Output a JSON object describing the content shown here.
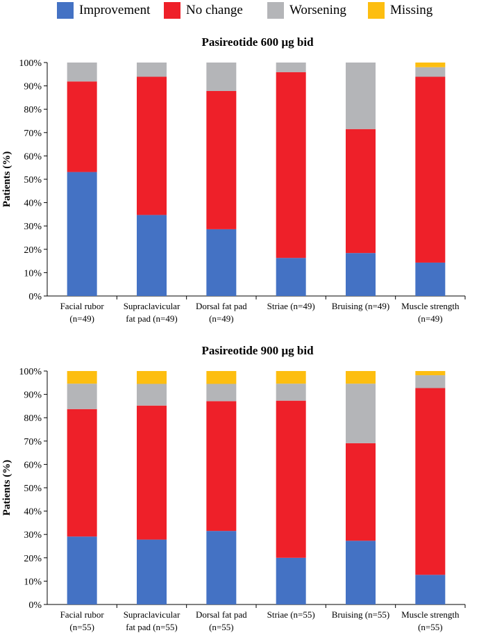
{
  "legend": [
    {
      "label": "Improvement",
      "color": "#4472c4"
    },
    {
      "label": "No change",
      "color": "#ee2029"
    },
    {
      "label": "Worsening",
      "color": "#b4b5b8"
    },
    {
      "label": "Missing",
      "color": "#fdbe10"
    }
  ],
  "ylabel": "Patients (%)",
  "chart_data": [
    {
      "type": "bar",
      "stacked": true,
      "title": "Pasireotide 600 µg bid",
      "ylabel": "Patients (%)",
      "ylim": [
        0,
        100
      ],
      "yticks": [
        "0%",
        "10%",
        "20%",
        "30%",
        "40%",
        "50%",
        "60%",
        "70%",
        "80%",
        "90%",
        "100%"
      ],
      "categories": [
        [
          "Facial rubor",
          "(n=49)"
        ],
        [
          "Supraclavicular",
          "fat pad (n=49)"
        ],
        [
          "Dorsal fat pad",
          "(n=49)"
        ],
        [
          "Striae (n=49)"
        ],
        [
          "Bruising (n=49)"
        ],
        [
          "Muscle strength",
          "(n=49)"
        ]
      ],
      "series": [
        {
          "name": "Improvement",
          "values": [
            53.1,
            34.7,
            28.6,
            16.3,
            18.4,
            14.3
          ]
        },
        {
          "name": "No change",
          "values": [
            38.8,
            59.2,
            59.2,
            79.6,
            53.1,
            79.6
          ]
        },
        {
          "name": "Worsening",
          "values": [
            8.1,
            6.1,
            12.2,
            4.1,
            28.5,
            4.1
          ]
        },
        {
          "name": "Missing",
          "values": [
            0,
            0,
            0,
            0,
            0,
            2.0
          ]
        }
      ]
    },
    {
      "type": "bar",
      "stacked": true,
      "title": "Pasireotide 900 µg bid",
      "ylabel": "Patients (%)",
      "ylim": [
        0,
        100
      ],
      "yticks": [
        "0%",
        "10%",
        "20%",
        "30%",
        "40%",
        "50%",
        "60%",
        "70%",
        "80%",
        "90%",
        "100%"
      ],
      "categories": [
        [
          "Facial rubor",
          "(n=55)"
        ],
        [
          "Supraclavicular",
          "fat pad (n=55)"
        ],
        [
          "Dorsal fat pad",
          "(n=55)"
        ],
        [
          "Striae (n=55)"
        ],
        [
          "Bruising (n=55)"
        ],
        [
          "Muscle strength",
          "(n=55)"
        ]
      ],
      "series": [
        {
          "name": "Improvement",
          "values": [
            29.1,
            27.8,
            31.5,
            20.0,
            27.3,
            12.7
          ]
        },
        {
          "name": "No change",
          "values": [
            54.6,
            57.4,
            55.6,
            67.3,
            41.8,
            80.0
          ]
        },
        {
          "name": "Worsening",
          "values": [
            10.9,
            9.3,
            7.4,
            7.3,
            25.5,
            5.5
          ]
        },
        {
          "name": "Missing",
          "values": [
            5.4,
            5.5,
            5.5,
            5.4,
            5.4,
            1.8
          ]
        }
      ]
    }
  ]
}
